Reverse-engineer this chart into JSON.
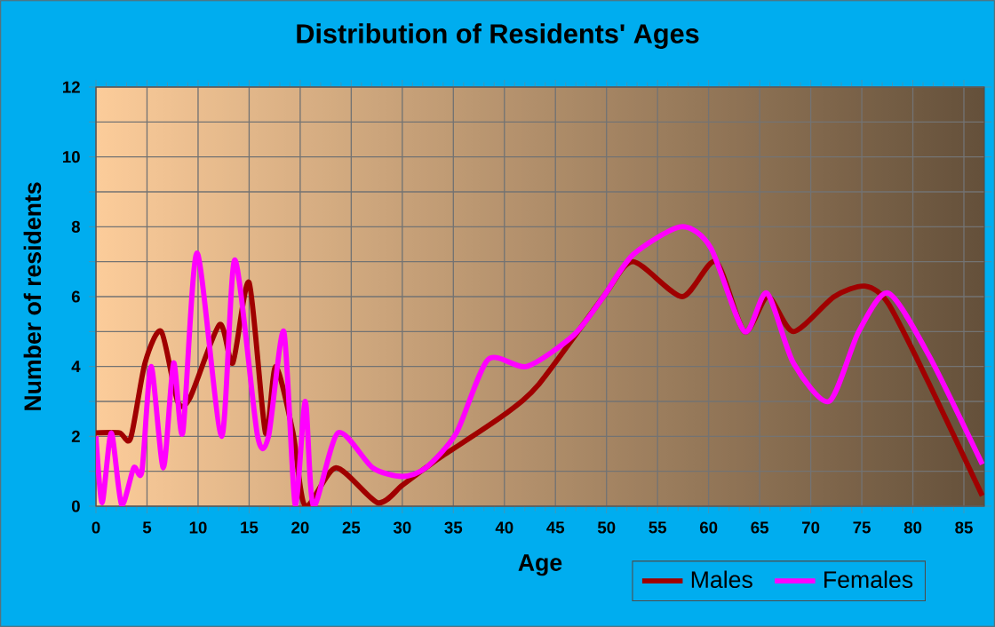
{
  "chart_data": {
    "type": "line",
    "title": "Distribution of Residents' Ages",
    "xlabel": "Age",
    "ylabel": "Number of residents",
    "xlim": [
      0,
      87
    ],
    "xticks": [
      0,
      5,
      10,
      15,
      20,
      25,
      30,
      35,
      40,
      45,
      50,
      55,
      60,
      65,
      70,
      75,
      80,
      85
    ],
    "ylim": [
      0,
      12
    ],
    "yticks": [
      0,
      {
        "value": 1,
        "label": null
      },
      2,
      {
        "value": 3,
        "label": null
      },
      4,
      {
        "value": 5,
        "label": null
      },
      6,
      {
        "value": 7,
        "label": null
      },
      8,
      {
        "value": 9,
        "label": null
      },
      10,
      {
        "value": 11,
        "label": null
      },
      12
    ],
    "grid": true,
    "legend": "bottom right",
    "marker": "none",
    "line_style": "solid",
    "series": [
      {
        "name": "Males",
        "color": "#a00000",
        "x": [
          0,
          2.3,
          3.4,
          4.8,
          6.4,
          8.0,
          9.2,
          12.1,
          13.4,
          15.0,
          16.6,
          17.6,
          19.3,
          20.5,
          23.5,
          27.6,
          30,
          32.3,
          34,
          39.9,
          43.4,
          49.7,
          52.6,
          57.4,
          60.7,
          63.5,
          65.8,
          68.3,
          72.3,
          75.3,
          77.6,
          81.6,
          86.8
        ],
        "values": [
          2.1,
          2.1,
          1.95,
          4.1,
          5.0,
          3.0,
          3.1,
          5.2,
          4.1,
          6.4,
          2.1,
          4.0,
          2.1,
          0,
          1.1,
          0.1,
          0.6,
          1.1,
          1.45,
          2.6,
          3.5,
          6.0,
          7.0,
          6.0,
          7.0,
          5.0,
          6.0,
          5.0,
          6.0,
          6.3,
          5.8,
          3.5,
          0.3
        ]
      },
      {
        "name": "Females",
        "color": "#ff00ff",
        "x": [
          0,
          0.6,
          1.5,
          2.5,
          3.7,
          4.5,
          5.4,
          6.6,
          7.6,
          8.5,
          9.9,
          12.3,
          13.6,
          15.8,
          16.9,
          18.4,
          19.5,
          20.5,
          21.3,
          23.7,
          27.1,
          30,
          32.3,
          35.3,
          38.4,
          42.2,
          46.8,
          49.7,
          52.6,
          57.3,
          60.2,
          63.5,
          65.7,
          68.3,
          71.8,
          74.7,
          77.6,
          81.6,
          86.8
        ],
        "values": [
          2.0,
          0.1,
          2.1,
          0.05,
          1.1,
          1.0,
          4.0,
          1.1,
          4.1,
          2.1,
          7.25,
          2.0,
          7.05,
          2.05,
          2.0,
          5.0,
          0.05,
          3.0,
          0,
          2.1,
          1.1,
          0.85,
          1.1,
          2.1,
          4.2,
          4.0,
          4.9,
          6.0,
          7.2,
          8.0,
          7.4,
          5.0,
          6.1,
          4.1,
          3.0,
          5.0,
          6.1,
          4.3,
          1.2
        ]
      }
    ]
  }
}
